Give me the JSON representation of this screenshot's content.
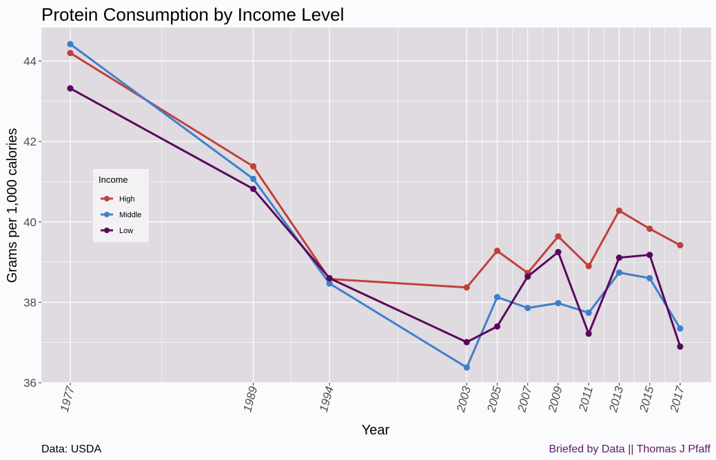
{
  "chart_data": {
    "type": "line",
    "title": "Protein Consumption by Income Level",
    "xlabel": "Year",
    "ylabel": "Grams per 1,000 calories",
    "x": [
      1977,
      1989,
      1994,
      2003,
      2005,
      2007,
      2009,
      2011,
      2013,
      2015,
      2017
    ],
    "x_tick_labels": [
      "1977",
      "1989",
      "1994",
      "2003",
      "2005",
      "2007",
      "2009",
      "2011",
      "2013",
      "2015",
      "2017"
    ],
    "xlim": [
      1977,
      2017
    ],
    "ylim": [
      36,
      44.8
    ],
    "y_ticks": [
      36,
      38,
      40,
      42,
      44
    ],
    "y_tick_labels": [
      "36",
      "38",
      "40",
      "42",
      "44"
    ],
    "grid": true,
    "legend": {
      "title": "Income",
      "position": "left",
      "entries": [
        "High",
        "Middle",
        "Low"
      ]
    },
    "series": [
      {
        "name": "High",
        "color": "#c0403c",
        "values": [
          44.2,
          41.38,
          38.58,
          38.37,
          39.28,
          38.73,
          39.64,
          38.9,
          40.28,
          39.83,
          39.42
        ]
      },
      {
        "name": "Middle",
        "color": "#3f7fcb",
        "values": [
          44.42,
          41.07,
          38.47,
          36.38,
          38.13,
          37.86,
          37.98,
          37.74,
          38.74,
          38.6,
          37.35
        ]
      },
      {
        "name": "Low",
        "color": "#5a075e",
        "values": [
          43.32,
          40.82,
          38.6,
          37.01,
          37.4,
          38.64,
          39.25,
          37.22,
          39.11,
          39.18,
          36.9
        ]
      }
    ]
  },
  "captions": {
    "left": "Data: USDA",
    "right": "Briefed by Data || Thomas J Pfaff"
  }
}
